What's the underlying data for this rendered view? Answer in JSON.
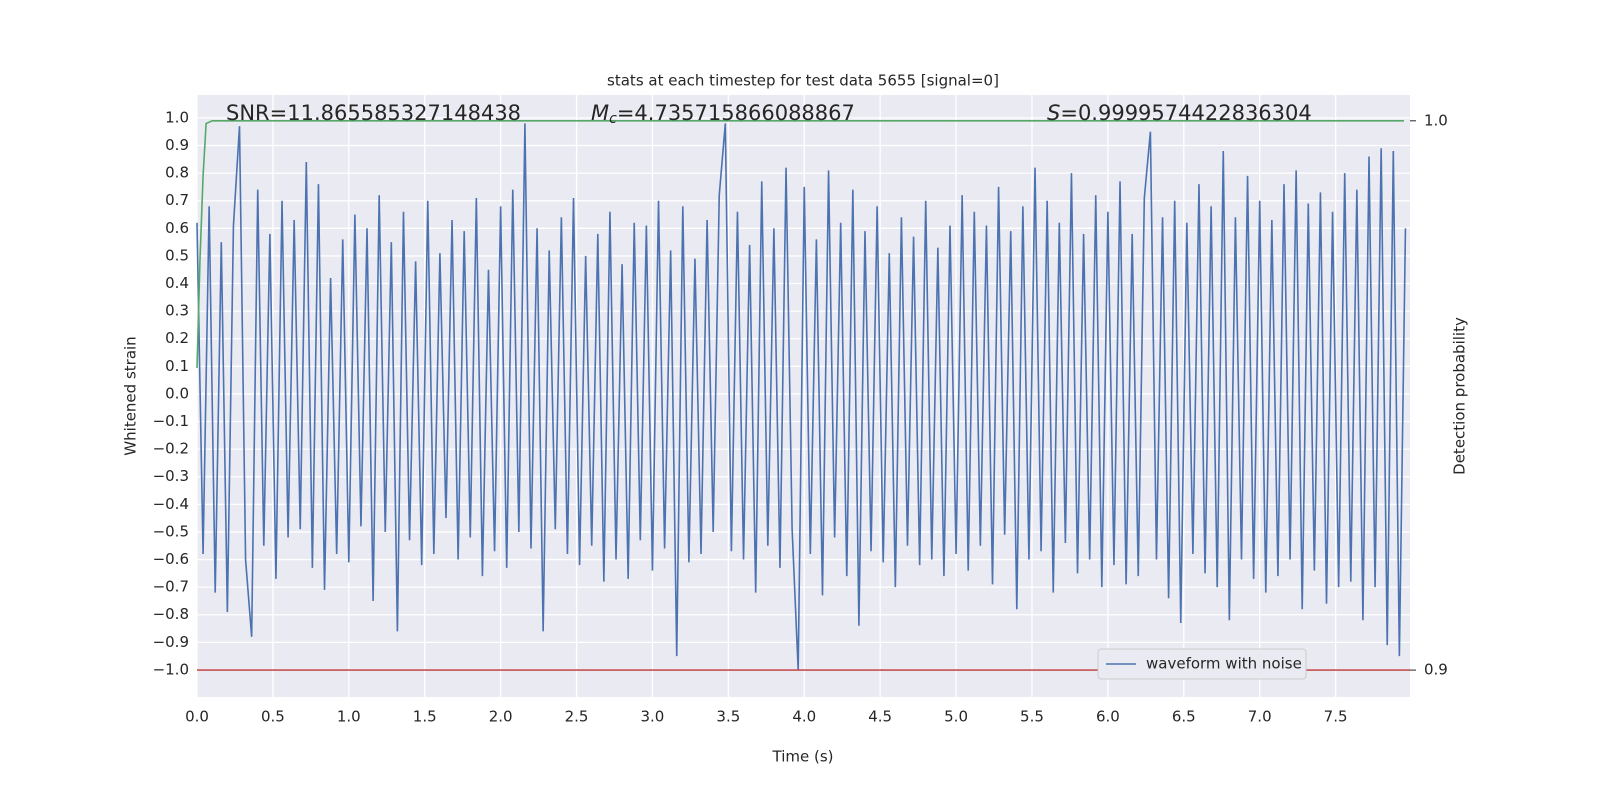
{
  "chart_data": {
    "type": "line",
    "title": "stats at each timestep for test data 5655 [signal=0]",
    "xlabel": "Time (s)",
    "ylabel": "Whitened strain",
    "y2label": "Detection probability",
    "annotations": [
      {
        "text": "SNR=11.865585327148438"
      },
      {
        "symbol": "M",
        "subscript": "c",
        "text": "=4.735715866088867"
      },
      {
        "symbol": "S",
        "text": "=0.9999574422836304"
      }
    ],
    "xlim": [
      0,
      7.99
    ],
    "ylim": [
      -1.098,
      1.083
    ],
    "y2lim": [
      0.8951,
      1.0047
    ],
    "xticks": [
      {
        "value": 0,
        "label": "0.0"
      },
      0.5,
      {
        "value": 1,
        "label": "1.0"
      },
      1.5,
      {
        "value": 2,
        "label": "2.0"
      },
      2.5,
      {
        "value": 3,
        "label": "3.0"
      },
      3.5,
      {
        "value": 4,
        "label": "4.0"
      },
      4.5,
      {
        "value": 5,
        "label": "5.0"
      },
      5.5,
      {
        "value": 6,
        "label": "6.0"
      },
      6.5,
      {
        "value": 7,
        "label": "7.0"
      },
      7.5
    ],
    "yticks": [
      {
        "value": -1,
        "label": "−1.0"
      },
      {
        "value": -0.9,
        "label": "−0.9"
      },
      {
        "value": -0.8,
        "label": "−0.8"
      },
      {
        "value": -0.7,
        "label": "−0.7"
      },
      {
        "value": -0.6,
        "label": "−0.6"
      },
      {
        "value": -0.5,
        "label": "−0.5"
      },
      {
        "value": -0.4,
        "label": "−0.4"
      },
      {
        "value": -0.3,
        "label": "−0.3"
      },
      {
        "value": -0.2,
        "label": "−0.2"
      },
      {
        "value": -0.1,
        "label": "−0.1"
      },
      {
        "value": 0,
        "label": "0.0"
      },
      0.1,
      0.2,
      0.3,
      0.4,
      0.5,
      0.6,
      0.7,
      0.8,
      0.9,
      {
        "value": 1,
        "label": "1.0"
      }
    ],
    "y2ticks": [
      {
        "value": 0.9,
        "label": "0.9"
      },
      {
        "value": 1,
        "label": "1.0"
      }
    ],
    "grid": true,
    "legend_loc": "lower right",
    "series": [
      {
        "name": "waveform with noise",
        "color": "#4c72b0",
        "x": [
          0,
          0.04,
          0.08,
          0.12,
          0.16,
          0.2,
          0.24,
          0.28,
          0.32,
          0.36,
          0.4,
          0.44,
          0.48,
          0.52,
          0.56,
          0.6,
          0.64,
          0.68,
          0.72,
          0.76,
          0.8,
          0.84,
          0.88,
          0.92,
          0.96,
          1,
          1.04,
          1.08,
          1.12,
          1.16,
          1.2,
          1.24,
          1.28,
          1.32,
          1.36,
          1.4,
          1.44,
          1.48,
          1.52,
          1.56,
          1.6,
          1.64,
          1.68,
          1.72,
          1.76,
          1.8,
          1.84,
          1.88,
          1.92,
          1.96,
          2,
          2.04,
          2.08,
          2.12,
          2.16,
          2.2,
          2.24,
          2.28,
          2.32,
          2.36,
          2.4,
          2.44,
          2.48,
          2.52,
          2.56,
          2.6,
          2.64,
          2.68,
          2.72,
          2.76,
          2.8,
          2.84,
          2.88,
          2.92,
          2.96,
          3,
          3.04,
          3.08,
          3.12,
          3.16,
          3.2,
          3.24,
          3.28,
          3.32,
          3.36,
          3.4,
          3.44,
          3.48,
          3.52,
          3.56,
          3.6,
          3.64,
          3.68,
          3.72,
          3.76,
          3.8,
          3.84,
          3.88,
          3.92,
          3.96,
          4,
          4.04,
          4.08,
          4.12,
          4.16,
          4.2,
          4.24,
          4.28,
          4.32,
          4.36,
          4.4,
          4.44,
          4.48,
          4.52,
          4.56,
          4.6,
          4.64,
          4.68,
          4.72,
          4.76,
          4.8,
          4.84,
          4.88,
          4.92,
          4.96,
          5,
          5.04,
          5.08,
          5.12,
          5.16,
          5.2,
          5.24,
          5.28,
          5.32,
          5.36,
          5.4,
          5.44,
          5.48,
          5.52,
          5.56,
          5.6,
          5.64,
          5.68,
          5.72,
          5.76,
          5.8,
          5.84,
          5.88,
          5.92,
          5.96,
          6,
          6.04,
          6.08,
          6.12,
          6.16,
          6.2,
          6.24,
          6.28,
          6.32,
          6.36,
          6.4,
          6.44,
          6.48,
          6.52,
          6.56,
          6.6,
          6.64,
          6.68,
          6.72,
          6.76,
          6.8,
          6.84,
          6.88,
          6.92,
          6.96,
          7,
          7.04,
          7.08,
          7.12,
          7.16,
          7.2,
          7.24,
          7.28,
          7.32,
          7.36,
          7.4,
          7.44,
          7.48,
          7.52,
          7.56,
          7.6,
          7.64,
          7.68,
          7.72,
          7.76,
          7.8,
          7.84,
          7.88,
          7.92,
          7.96
        ],
        "values": [
          0.62,
          -0.58,
          0.68,
          -0.72,
          0.55,
          -0.79,
          0.61,
          0.97,
          -0.6,
          -0.88,
          0.74,
          -0.55,
          0.58,
          -0.67,
          0.7,
          -0.52,
          0.63,
          -0.49,
          0.84,
          -0.63,
          0.76,
          -0.71,
          0.42,
          -0.58,
          0.56,
          -0.61,
          0.65,
          -0.48,
          0.6,
          -0.75,
          0.72,
          -0.5,
          0.55,
          -0.86,
          0.66,
          -0.53,
          0.48,
          -0.62,
          0.7,
          -0.58,
          0.51,
          -0.45,
          0.63,
          -0.6,
          0.59,
          -0.52,
          0.71,
          -0.66,
          0.45,
          -0.57,
          0.68,
          -0.63,
          0.74,
          -0.5,
          0.98,
          -0.56,
          0.6,
          -0.86,
          0.52,
          -0.49,
          0.64,
          -0.58,
          0.71,
          -0.62,
          0.5,
          -0.55,
          0.58,
          -0.68,
          0.66,
          -0.6,
          0.47,
          -0.67,
          0.62,
          -0.53,
          0.61,
          -0.64,
          0.7,
          -0.56,
          0.52,
          -0.95,
          0.68,
          -0.61,
          0.49,
          -0.58,
          0.63,
          -0.5,
          0.72,
          0.98,
          -0.57,
          0.66,
          -0.6,
          0.54,
          -0.72,
          0.77,
          -0.55,
          0.6,
          -0.63,
          0.82,
          -0.49,
          -1.0,
          0.75,
          -0.58,
          0.56,
          -0.73,
          0.81,
          -0.52,
          0.62,
          -0.66,
          0.74,
          -0.84,
          0.59,
          -0.57,
          0.68,
          -0.61,
          0.51,
          -0.7,
          0.64,
          -0.55,
          0.57,
          -0.62,
          0.7,
          -0.6,
          0.53,
          -0.66,
          0.61,
          -0.58,
          0.72,
          -0.64,
          0.66,
          -0.55,
          0.61,
          -0.69,
          0.75,
          -0.51,
          0.59,
          -0.78,
          0.68,
          -0.6,
          0.82,
          -0.57,
          0.7,
          -0.72,
          0.62,
          -0.54,
          0.8,
          -0.65,
          0.58,
          -0.6,
          0.72,
          -0.7,
          0.66,
          -0.62,
          0.77,
          -0.69,
          0.58,
          -0.66,
          0.71,
          0.95,
          -0.6,
          0.64,
          -0.74,
          0.7,
          -0.83,
          0.62,
          -0.58,
          0.76,
          -0.65,
          0.68,
          -0.7,
          0.88,
          -0.82,
          0.64,
          -0.6,
          0.79,
          -0.67,
          0.7,
          -0.72,
          0.63,
          -0.66,
          0.76,
          -0.6,
          0.81,
          -0.78,
          0.69,
          -0.64,
          0.73,
          -0.76,
          0.66,
          -0.7,
          0.8,
          -0.68,
          0.74,
          -0.82,
          0.86,
          -0.7,
          0.89,
          -0.91,
          0.88,
          -0.95,
          0.6
        ]
      },
      {
        "color": "#55a868",
        "axis": "y2",
        "x": [
          0,
          0.02,
          0.04,
          0.06,
          0.1,
          7.95
        ],
        "values": [
          0.955,
          0.975,
          0.99,
          0.9995,
          1.0,
          1.0
        ]
      },
      {
        "color": "#c44e52",
        "axis": "y2",
        "x": [
          0,
          7.99
        ],
        "values": [
          0.9,
          0.9
        ]
      }
    ]
  }
}
